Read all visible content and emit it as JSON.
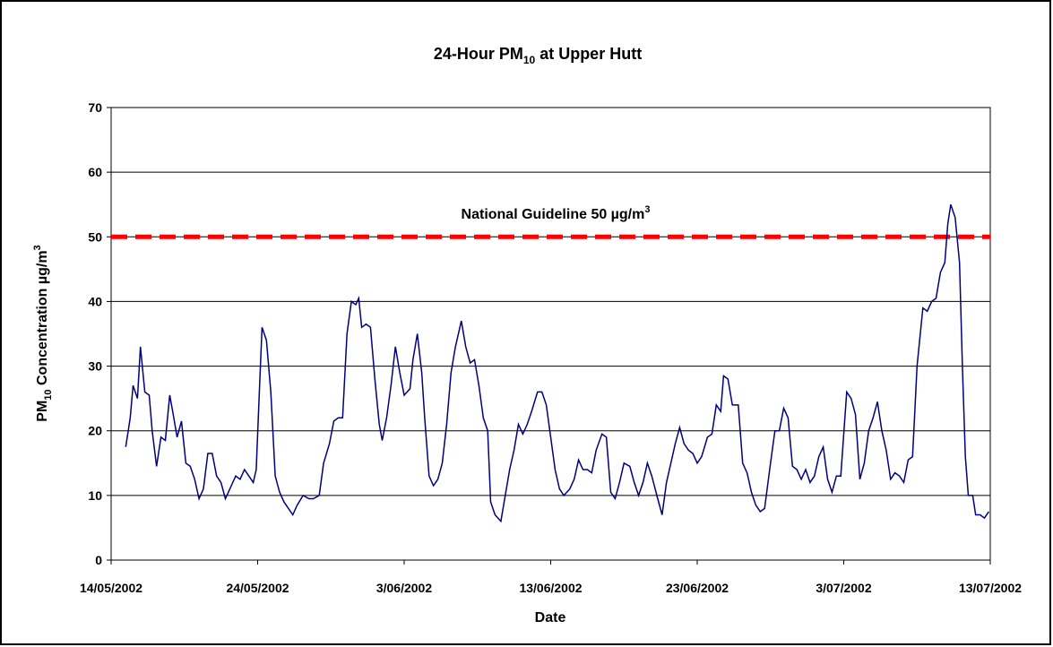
{
  "chart_data": {
    "type": "line",
    "title": [
      "24-Hour PM",
      "10",
      " at Upper Hutt"
    ],
    "x_label": "Date",
    "y_label": [
      "PM",
      "10",
      " Concentration µg/m",
      "3"
    ],
    "x": [
      1.0,
      1.3,
      1.5,
      1.8,
      2.0,
      2.3,
      2.6,
      2.8,
      3.1,
      3.4,
      3.7,
      4.0,
      4.2,
      4.5,
      4.8,
      5.1,
      5.4,
      5.7,
      6.0,
      6.3,
      6.6,
      6.9,
      7.2,
      7.5,
      7.8,
      8.2,
      8.5,
      8.8,
      9.1,
      9.4,
      9.7,
      9.9,
      10.1,
      10.3,
      10.6,
      10.9,
      11.2,
      11.5,
      11.8,
      12.1,
      12.4,
      12.7,
      13.1,
      13.5,
      13.8,
      14.2,
      14.5,
      14.9,
      15.2,
      15.5,
      15.8,
      16.1,
      16.4,
      16.7,
      16.9,
      17.1,
      17.4,
      17.7,
      18.0,
      18.3,
      18.5,
      18.8,
      19.1,
      19.4,
      19.7,
      20.0,
      20.4,
      20.6,
      20.9,
      21.2,
      21.4,
      21.7,
      22.0,
      22.3,
      22.6,
      22.9,
      23.2,
      23.5,
      23.9,
      24.2,
      24.5,
      24.8,
      25.1,
      25.4,
      25.7,
      25.9,
      26.2,
      26.6,
      26.9,
      27.2,
      27.5,
      27.8,
      28.1,
      28.4,
      28.7,
      29.1,
      29.4,
      29.7,
      30.0,
      30.3,
      30.6,
      30.9,
      31.3,
      31.6,
      31.9,
      32.2,
      32.5,
      32.8,
      33.1,
      33.5,
      33.8,
      34.1,
      34.4,
      34.7,
      35.0,
      35.4,
      35.7,
      36.0,
      36.3,
      36.6,
      36.9,
      37.3,
      37.6,
      37.9,
      38.2,
      38.5,
      38.8,
      39.1,
      39.4,
      39.7,
      40.0,
      40.3,
      40.7,
      41.0,
      41.3,
      41.6,
      41.8,
      42.1,
      42.4,
      42.8,
      43.1,
      43.4,
      43.7,
      44.0,
      44.3,
      44.6,
      45.0,
      45.3,
      45.6,
      45.9,
      46.2,
      46.5,
      46.8,
      47.1,
      47.4,
      47.7,
      48.0,
      48.3,
      48.6,
      48.9,
      49.2,
      49.5,
      49.8,
      50.2,
      50.5,
      50.8,
      51.1,
      51.4,
      51.7,
      52.0,
      52.3,
      52.6,
      52.9,
      53.2,
      53.5,
      53.8,
      54.1,
      54.4,
      54.7,
      55.0,
      55.4,
      55.7,
      56.0,
      56.3,
      56.6,
      56.9,
      57.1,
      57.3,
      57.6,
      57.9,
      58.1,
      58.3,
      58.5,
      58.8,
      59.0,
      59.3,
      59.6,
      59.9
    ],
    "values": [
      17.5,
      22,
      27,
      25,
      33,
      26,
      25.5,
      20,
      14.5,
      19,
      18.5,
      25.5,
      23,
      19,
      21.5,
      15,
      14.5,
      12.5,
      9.5,
      11,
      16.5,
      16.5,
      13,
      12,
      9.5,
      11.5,
      13,
      12.5,
      14,
      13,
      12,
      14,
      25,
      36,
      34,
      26,
      13,
      10.5,
      9,
      8,
      7,
      8.5,
      10,
      9.5,
      9.5,
      10,
      15,
      18,
      21.5,
      22,
      22,
      35,
      40,
      39.5,
      40.5,
      36,
      36.5,
      36,
      28,
      21,
      18.5,
      22,
      27,
      33,
      29,
      25.5,
      26.5,
      31,
      35,
      29,
      22,
      13,
      11.5,
      12.5,
      15,
      21,
      29,
      33,
      37,
      33,
      30.5,
      31,
      27,
      22,
      20,
      9,
      7,
      6,
      10,
      14,
      17,
      21,
      19.5,
      21,
      23,
      26,
      26,
      24,
      19,
      14,
      11,
      10,
      11,
      12.5,
      15.5,
      14,
      14,
      13.5,
      17,
      19.5,
      19,
      10.5,
      9.5,
      12,
      15,
      14.5,
      12,
      10,
      12,
      15,
      13,
      9.5,
      7,
      12,
      15,
      18,
      20.5,
      18,
      17,
      16.5,
      15,
      16,
      19,
      19.5,
      24,
      23,
      28.5,
      28,
      24,
      24,
      15,
      13.5,
      10.5,
      8.5,
      7.5,
      8,
      15,
      20,
      20,
      23.5,
      22,
      14.5,
      14,
      12.5,
      14,
      12,
      13,
      16,
      17.5,
      12.5,
      10.5,
      13,
      13,
      26,
      25,
      22.5,
      12.5,
      15,
      20,
      22,
      24.5,
      20,
      17,
      12.5,
      13.5,
      13,
      12,
      15.5,
      16,
      30,
      39,
      38.5,
      40,
      40.5,
      44.5,
      46,
      52,
      55,
      53,
      46,
      30,
      16,
      10,
      10,
      7,
      7,
      6.5,
      7.5
    ],
    "color": "#000080",
    "xlim": [
      0,
      60
    ],
    "xticks": [
      {
        "value": 0,
        "label": "14/05/2002"
      },
      {
        "value": 10,
        "label": "24/05/2002"
      },
      {
        "value": 20,
        "label": "3/06/2002"
      },
      {
        "value": 30,
        "label": "13/06/2002"
      },
      {
        "value": 40,
        "label": "23/06/2002"
      },
      {
        "value": 50,
        "label": "3/07/2002"
      },
      {
        "value": 60,
        "label": "13/07/2002"
      }
    ],
    "ylim": [
      0,
      70
    ],
    "yticks": [
      0,
      10,
      20,
      30,
      40,
      50,
      60,
      70
    ],
    "grid": true,
    "guideline": {
      "value": 50,
      "color": "#ff0000",
      "label": [
        "National Guideline 50 µg/m",
        "3"
      ]
    }
  }
}
